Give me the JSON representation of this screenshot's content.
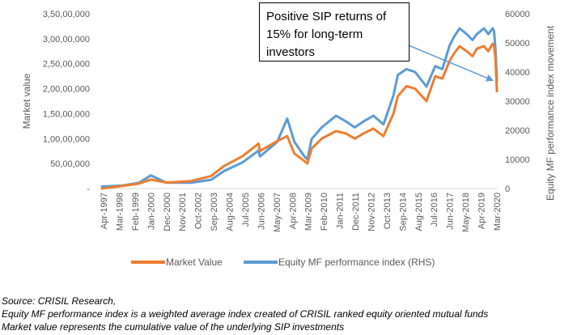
{
  "chart_data": {
    "type": "line",
    "title": "",
    "xlabel": "",
    "ylabel": "Market value",
    "y2label": "Equity MF performance index movement",
    "ylim": [
      0,
      35000000
    ],
    "y2lim": [
      0,
      60000
    ],
    "y_ticks": [
      "-",
      "50,00,000",
      "1,00,00,000",
      "1,50,00,000",
      "2,00,00,000",
      "2,50,00,000",
      "3,00,00,000",
      "3,50,00,000"
    ],
    "y2_ticks": [
      "0",
      "10000",
      "20000",
      "30000",
      "40000",
      "50000",
      "60000"
    ],
    "x_tick_labels": [
      "Apr-1997",
      "Mar-1998",
      "Feb-1999",
      "Jan-2000",
      "Dec-2000",
      "Nov-2001",
      "Oct-2002",
      "Sep-2003",
      "Aug-2004",
      "Jul-2005",
      "Jun-2006",
      "May-2007",
      "Apr-2008",
      "Mar-2009",
      "Feb-2010",
      "Jan-2011",
      "Dec-2011",
      "Nov-2012",
      "Oct-2013",
      "Sep-2014",
      "Aug-2015",
      "Jul-2016",
      "Jun-2017",
      "May-2018",
      "Apr-2019",
      "Mar-2020"
    ],
    "x_start": "1997-04",
    "x_end": "2020-03",
    "legend_position": "bottom",
    "grid": false,
    "series": [
      {
        "name": "Market Value",
        "axis": "left",
        "color": "#ED7D31",
        "x": [
          "1997-04",
          "1998-06",
          "1999-06",
          "2000-02",
          "2001-01",
          "2002-06",
          "2003-08",
          "2004-05",
          "2005-06",
          "2006-05",
          "2006-06",
          "2007-06",
          "2008-01",
          "2008-06",
          "2009-01",
          "2009-03",
          "2009-06",
          "2010-01",
          "2010-11",
          "2011-06",
          "2011-12",
          "2012-06",
          "2013-01",
          "2013-08",
          "2014-03",
          "2014-06",
          "2014-12",
          "2015-06",
          "2016-02",
          "2016-08",
          "2017-01",
          "2017-06",
          "2017-09",
          "2018-01",
          "2018-06",
          "2018-10",
          "2019-01",
          "2019-06",
          "2019-09",
          "2019-12",
          "2020-01",
          "2020-02",
          "2020-03"
        ],
        "values": [
          0,
          500000,
          1000000,
          1800000,
          1200000,
          1500000,
          2500000,
          4500000,
          6500000,
          9000000,
          7500000,
          9500000,
          10500000,
          7000000,
          5500000,
          5000000,
          8000000,
          10000000,
          11500000,
          11000000,
          10000000,
          11000000,
          12000000,
          10500000,
          15000000,
          18500000,
          20500000,
          20000000,
          17500000,
          22500000,
          22000000,
          25500000,
          27000000,
          28500000,
          27500000,
          26500000,
          28000000,
          28500000,
          27500000,
          29000000,
          28500000,
          26000000,
          19500000
        ]
      },
      {
        "name": "Equity MF performance index (RHS)",
        "axis": "right",
        "color": "#5B9BD5",
        "x": [
          "1997-04",
          "1998-06",
          "1999-06",
          "2000-02",
          "2001-01",
          "2002-06",
          "2003-08",
          "2004-05",
          "2005-06",
          "2006-05",
          "2006-06",
          "2007-06",
          "2008-01",
          "2008-06",
          "2009-01",
          "2009-03",
          "2009-06",
          "2010-01",
          "2010-11",
          "2011-06",
          "2011-12",
          "2012-06",
          "2013-01",
          "2013-08",
          "2014-03",
          "2014-06",
          "2014-12",
          "2015-06",
          "2016-02",
          "2016-08",
          "2017-01",
          "2017-06",
          "2017-09",
          "2018-01",
          "2018-06",
          "2018-10",
          "2019-01",
          "2019-06",
          "2019-09",
          "2019-12",
          "2020-01",
          "2020-02",
          "2020-03"
        ],
        "values": [
          700,
          1000,
          2000,
          4500,
          2000,
          2000,
          3000,
          6000,
          9000,
          13000,
          11000,
          16000,
          24000,
          16000,
          11000,
          10000,
          17000,
          21000,
          25000,
          23000,
          21000,
          23000,
          25000,
          22000,
          32000,
          39000,
          41000,
          40000,
          35000,
          42000,
          41000,
          49000,
          52000,
          55000,
          53000,
          51000,
          53000,
          55000,
          53000,
          55000,
          54000,
          48000,
          37000
        ]
      }
    ],
    "annotations": [
      {
        "text": "Positive SIP returns of 15% for long-term investors",
        "arrow_target": {
          "x": "2020-03",
          "y2": 37000
        }
      }
    ]
  },
  "footnotes": [
    "Source: CRISIL Research,",
    "Equity MF performance index is a weighted average index created of CRISIL ranked equity oriented mutual funds",
    "Market value represents the cumulative value of the underlying SIP investments"
  ]
}
